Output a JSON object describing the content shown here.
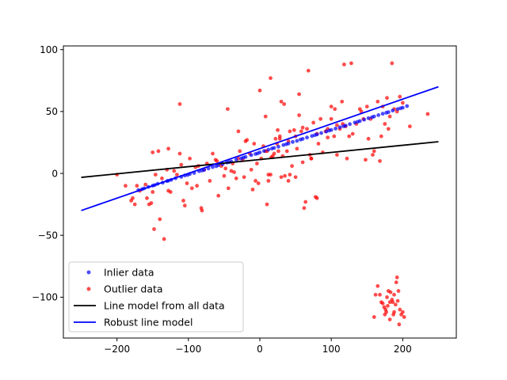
{
  "chart_data": {
    "type": "scatter",
    "title": "",
    "xlabel": "",
    "ylabel": "",
    "xlim": [
      -275,
      275
    ],
    "ylim": [
      -133,
      103
    ],
    "grid": false,
    "legend_placement": "lower-left",
    "xticks": [
      -200,
      -100,
      0,
      100,
      200
    ],
    "yticks": [
      -100,
      -50,
      0,
      50,
      100
    ],
    "xtick_labels": [
      "−200",
      "−100",
      "0",
      "100",
      "200"
    ],
    "ytick_labels": [
      "−100",
      "−50",
      "0",
      "50",
      "100"
    ],
    "series": [
      {
        "name": "Inlier data",
        "kind": "points",
        "color": "#0000ff",
        "points": [
          [
            -170,
            -13.5
          ],
          [
            -162,
            -12.1
          ],
          [
            -156,
            -10.9
          ],
          [
            -150,
            -9.9
          ],
          [
            -143,
            -8.4
          ],
          [
            -136,
            -7.5
          ],
          [
            -130,
            -6.2
          ],
          [
            -124,
            -5.2
          ],
          [
            -118,
            -3.9
          ],
          [
            -110,
            -2.8
          ],
          [
            -105,
            -1.7
          ],
          [
            -98,
            -0.5
          ],
          [
            -92,
            0.4
          ],
          [
            -85,
            1.8
          ],
          [
            -78,
            2.8
          ],
          [
            -72,
            4.0
          ],
          [
            -66,
            5.1
          ],
          [
            -58,
            6.6
          ],
          [
            -52,
            7.5
          ],
          [
            -46,
            8.8
          ],
          [
            -40,
            9.6
          ],
          [
            -33,
            11.2
          ],
          [
            -26,
            12.1
          ],
          [
            -20,
            13.3
          ],
          [
            -12,
            14.8
          ],
          [
            -6,
            15.7
          ],
          [
            0,
            17.0
          ],
          [
            6,
            18.1
          ],
          [
            12,
            19.2
          ],
          [
            20,
            20.6
          ],
          [
            26,
            21.6
          ],
          [
            33,
            22.9
          ],
          [
            40,
            24.1
          ],
          [
            46,
            25.4
          ],
          [
            52,
            26.3
          ],
          [
            60,
            27.9
          ],
          [
            66,
            29.0
          ],
          [
            73,
            30.2
          ],
          [
            80,
            31.5
          ],
          [
            86,
            32.6
          ],
          [
            93,
            33.8
          ],
          [
            100,
            35.1
          ],
          [
            106,
            36.2
          ],
          [
            112,
            37.3
          ],
          [
            120,
            38.6
          ],
          [
            126,
            39.8
          ],
          [
            133,
            41.1
          ],
          [
            140,
            42.3
          ],
          [
            146,
            43.4
          ],
          [
            152,
            44.6
          ],
          [
            160,
            46.0
          ],
          [
            166,
            47.1
          ],
          [
            172,
            48.2
          ],
          [
            180,
            49.5
          ],
          [
            186,
            50.8
          ],
          [
            193,
            52.0
          ],
          [
            200,
            53.1
          ],
          [
            206,
            54.4
          ],
          [
            -165,
            -12.8
          ],
          [
            -147,
            -9.4
          ],
          [
            -128,
            -5.9
          ],
          [
            -101,
            -1.2
          ],
          [
            -81,
            2.3
          ],
          [
            -61,
            5.8
          ],
          [
            -43,
            9.1
          ],
          [
            -23,
            12.8
          ],
          [
            -3,
            16.2
          ],
          [
            17,
            20.1
          ],
          [
            37,
            23.6
          ],
          [
            57,
            27.3
          ],
          [
            77,
            30.9
          ],
          [
            97,
            34.6
          ],
          [
            117,
            38.1
          ],
          [
            137,
            41.7
          ],
          [
            157,
            45.4
          ],
          [
            177,
            49.0
          ],
          [
            197,
            52.6
          ]
        ]
      },
      {
        "name": "Outlier data",
        "kind": "points",
        "color": "#ff0000",
        "points": [
          [
            -180,
            -22
          ],
          [
            -178,
            -20
          ],
          [
            -175,
            -25
          ],
          [
            -172,
            -10
          ],
          [
            -168,
            -14
          ],
          [
            -160,
            -9
          ],
          [
            -158,
            -20
          ],
          [
            -155,
            -25
          ],
          [
            -152,
            -24
          ],
          [
            -150,
            17
          ],
          [
            -148,
            -45
          ],
          [
            -146,
            -1
          ],
          [
            -142,
            18
          ],
          [
            -140,
            -37
          ],
          [
            -137,
            -4
          ],
          [
            -134,
            -53
          ],
          [
            -130,
            3
          ],
          [
            -128,
            -14
          ],
          [
            -125,
            -15
          ],
          [
            -120,
            2
          ],
          [
            -116,
            -1
          ],
          [
            -112,
            16
          ],
          [
            -110,
            7
          ],
          [
            -107,
            -22
          ],
          [
            -105,
            -26
          ],
          [
            -102,
            -8
          ],
          [
            -98,
            12
          ],
          [
            -95,
            -12
          ],
          [
            -90,
            5
          ],
          [
            -86,
            6
          ],
          [
            -82,
            -28
          ],
          [
            -81,
            -30
          ],
          [
            -78,
            3
          ],
          [
            -74,
            8
          ],
          [
            -70,
            -6
          ],
          [
            -66,
            16
          ],
          [
            -62,
            11
          ],
          [
            -58,
            -18
          ],
          [
            -54,
            6
          ],
          [
            -50,
            -2
          ],
          [
            -48,
            4
          ],
          [
            -44,
            -12
          ],
          [
            -40,
            2
          ],
          [
            -38,
            8
          ],
          [
            -36,
            1
          ],
          [
            -33,
            -4
          ],
          [
            -30,
            12
          ],
          [
            -28,
            18
          ],
          [
            -24,
            11
          ],
          [
            -22,
            -3
          ],
          [
            -18,
            27
          ],
          [
            -14,
            16
          ],
          [
            -12,
            3
          ],
          [
            -8,
            24
          ],
          [
            -6,
            -6
          ],
          [
            -4,
            8
          ],
          [
            -2,
            -8
          ],
          [
            2,
            12
          ],
          [
            5,
            22
          ],
          [
            8,
            18
          ],
          [
            10,
            18
          ],
          [
            12,
            -1
          ],
          [
            15,
            -1
          ],
          [
            18,
            14
          ],
          [
            20,
            16
          ],
          [
            22,
            28
          ],
          [
            24,
            24
          ],
          [
            26,
            18
          ],
          [
            28,
            30
          ],
          [
            30,
            -3
          ],
          [
            32,
            14
          ],
          [
            35,
            -2
          ],
          [
            38,
            18
          ],
          [
            40,
            26
          ],
          [
            42,
            -1
          ],
          [
            45,
            6
          ],
          [
            48,
            35
          ],
          [
            50,
            30
          ],
          [
            52,
            20
          ],
          [
            55,
            47
          ],
          [
            58,
            34
          ],
          [
            60,
            9
          ],
          [
            62,
            -28
          ],
          [
            64,
            -23
          ],
          [
            66,
            36
          ],
          [
            70,
            15
          ],
          [
            72,
            12
          ],
          [
            75,
            41
          ],
          [
            78,
            -19
          ],
          [
            80,
            32
          ],
          [
            82,
            24
          ],
          [
            85,
            44
          ],
          [
            88,
            17
          ],
          [
            92,
            34
          ],
          [
            95,
            36
          ],
          [
            100,
            44
          ],
          [
            104,
            30
          ],
          [
            108,
            15
          ],
          [
            112,
            36
          ],
          [
            116,
            40
          ],
          [
            118,
            88
          ],
          [
            120,
            38
          ],
          [
            122,
            12
          ],
          [
            125,
            30
          ],
          [
            128,
            89
          ],
          [
            130,
            32
          ],
          [
            135,
            40
          ],
          [
            140,
            52
          ],
          [
            142,
            50
          ],
          [
            145,
            44
          ],
          [
            148,
            11
          ],
          [
            150,
            54
          ],
          [
            152,
            28
          ],
          [
            155,
            44
          ],
          [
            158,
            15
          ],
          [
            160,
            18
          ],
          [
            165,
            58
          ],
          [
            168,
            10
          ],
          [
            170,
            30
          ],
          [
            172,
            54
          ],
          [
            175,
            40
          ],
          [
            178,
            61
          ],
          [
            180,
            36
          ],
          [
            182,
            46
          ],
          [
            185,
            89
          ],
          [
            188,
            52
          ],
          [
            192,
            50
          ],
          [
            196,
            62
          ],
          [
            200,
            57
          ],
          [
            210,
            38
          ],
          [
            235,
            48
          ],
          [
            -200,
            -1
          ],
          [
            -188,
            -10
          ],
          [
            -88,
            -10
          ],
          [
            -60,
            10
          ],
          [
            -45,
            52
          ],
          [
            -30,
            34
          ],
          [
            -20,
            26
          ],
          [
            -10,
            -13
          ],
          [
            0,
            67
          ],
          [
            8,
            46
          ],
          [
            10,
            -25
          ],
          [
            12,
            -6
          ],
          [
            15,
            77
          ],
          [
            16,
            13
          ],
          [
            25,
            35
          ],
          [
            28,
            28
          ],
          [
            30,
            58
          ],
          [
            34,
            56
          ],
          [
            40,
            -6
          ],
          [
            42,
            34
          ],
          [
            50,
            -3
          ],
          [
            55,
            64
          ],
          [
            60,
            37
          ],
          [
            68,
            83
          ],
          [
            72,
            12
          ],
          [
            80,
            -20
          ],
          [
            95,
            29
          ],
          [
            100,
            54
          ],
          [
            105,
            52
          ],
          [
            108,
            39
          ],
          [
            115,
            58
          ],
          [
            -112,
            56
          ],
          [
            -128,
            20
          ],
          [
            -150,
            -15
          ],
          [
            160,
            -116
          ],
          [
            162,
            -98
          ],
          [
            165,
            -91
          ],
          [
            168,
            -98
          ],
          [
            170,
            -104
          ],
          [
            172,
            -105
          ],
          [
            174,
            -108
          ],
          [
            175,
            -114
          ],
          [
            177,
            -112
          ],
          [
            178,
            -100
          ],
          [
            180,
            -95
          ],
          [
            182,
            -104
          ],
          [
            183,
            -96
          ],
          [
            185,
            -102
          ],
          [
            186,
            -104
          ],
          [
            187,
            -114
          ],
          [
            188,
            -112
          ],
          [
            190,
            -106
          ],
          [
            191,
            -88
          ],
          [
            192,
            -84
          ],
          [
            193,
            -103
          ],
          [
            195,
            -122
          ],
          [
            196,
            -110
          ],
          [
            198,
            -114
          ],
          [
            200,
            -112
          ],
          [
            202,
            -116
          ],
          [
            176,
            -110
          ],
          [
            182,
            -118
          ],
          [
            179,
            -107
          ],
          [
            188,
            -98
          ],
          [
            194,
            -95
          ]
        ]
      },
      {
        "name": "Line model from all data",
        "kind": "line",
        "color": "#000000",
        "points": [
          [
            -250,
            -3.2
          ],
          [
            250,
            25.6
          ]
        ]
      },
      {
        "name": "Robust line model",
        "kind": "line",
        "color": "#0000ff",
        "points": [
          [
            -250,
            -30.0
          ],
          [
            250,
            70.0
          ]
        ]
      }
    ]
  }
}
